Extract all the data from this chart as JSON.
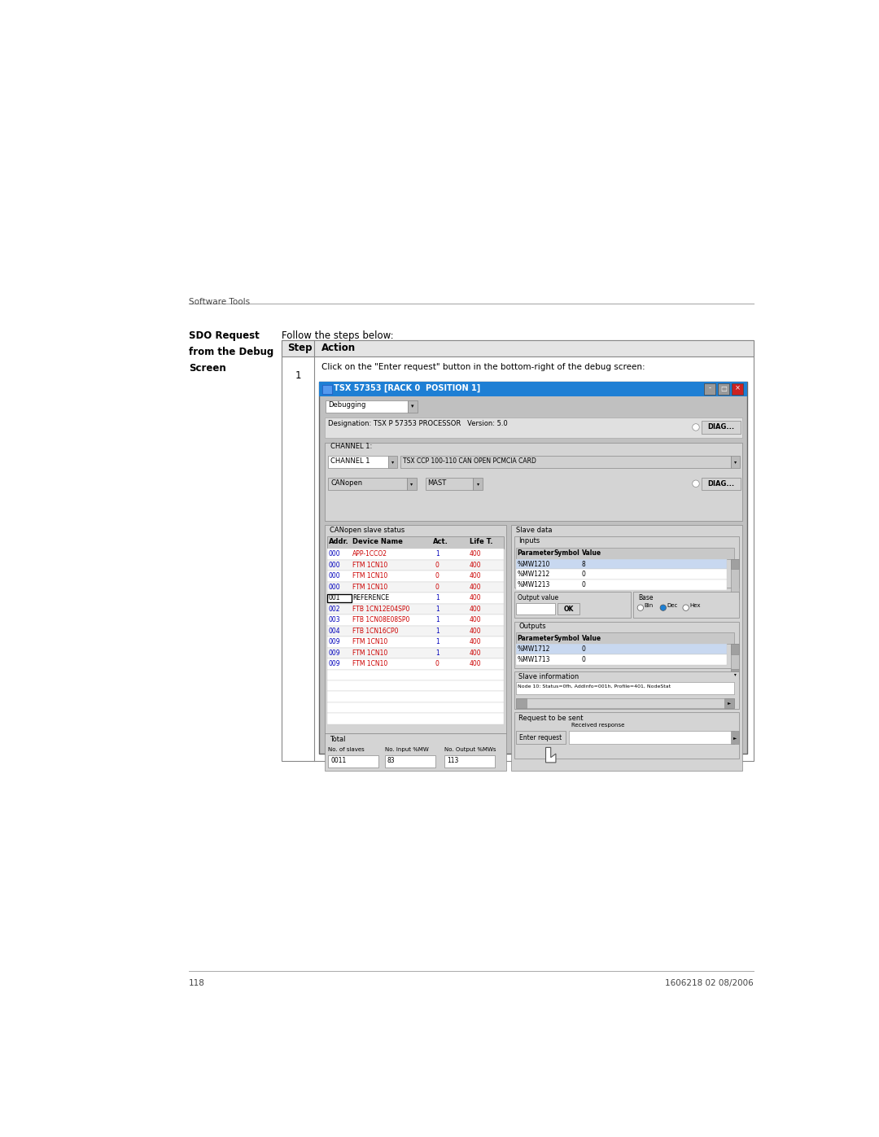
{
  "page_width": 10.8,
  "page_height": 13.97,
  "background_color": "#ffffff",
  "header_text": "Software Tools",
  "footer_page": "118",
  "footer_right": "1606218 02 08/2006",
  "intro_text": "Follow the steps below:",
  "step_action": "Click on the \"Enter request\" button in the bottom-right of the debug screen:",
  "window_title": "TSX 57353 [RACK 0  POSITION 1]",
  "window_title_bg": "#1e7fd4",
  "window_bg": "#c0c0c0",
  "dropdown_debug": "Debugging",
  "designation_text": "Designation: TSX P 57353 PROCESSOR   Version: 5.0",
  "channel_label": "CHANNEL 1:",
  "channel_dropdown": "CHANNEL 1",
  "channel_desc": "TSX CCP 100-110 CAN OPEN PCMCIA CARD",
  "canopen_text": "CANopen",
  "mast_text": "MAST",
  "slave_section_label": "CANopen slave status",
  "slave_data_label": "Slave data",
  "inputs_label": "Inputs",
  "outputs_label": "Outputs",
  "slave_info_label": "Slave information",
  "request_label": "Request to be sent",
  "table_col_headers": [
    "Addr.",
    "Device Name",
    "Act.",
    "Life T."
  ],
  "slave_rows": [
    {
      "addr": "000",
      "name": "APP-1CCO2",
      "act": "1",
      "life": "400",
      "addr_color": "#0000bb",
      "name_color": "#cc0000"
    },
    {
      "addr": "000",
      "name": "FTM 1CN10",
      "act": "0",
      "life": "400",
      "addr_color": "#0000bb",
      "name_color": "#cc0000"
    },
    {
      "addr": "000",
      "name": "FTM 1CN10",
      "act": "0",
      "life": "400",
      "addr_color": "#0000bb",
      "name_color": "#cc0000"
    },
    {
      "addr": "000",
      "name": "FTM 1CN10",
      "act": "0",
      "life": "400",
      "addr_color": "#0000bb",
      "name_color": "#cc0000"
    },
    {
      "addr": "001",
      "name": "REFERENCE",
      "act": "1",
      "life": "400",
      "addr_color": "#000000",
      "name_color": "#000000",
      "boxed": true
    },
    {
      "addr": "002",
      "name": "FTB 1CN12E04SP0",
      "act": "1",
      "life": "400",
      "addr_color": "#0000bb",
      "name_color": "#cc0000"
    },
    {
      "addr": "003",
      "name": "FTB 1CN08E08SP0",
      "act": "1",
      "life": "400",
      "addr_color": "#0000bb",
      "name_color": "#cc0000"
    },
    {
      "addr": "004",
      "name": "FTB 1CN16CP0",
      "act": "1",
      "life": "400",
      "addr_color": "#0000bb",
      "name_color": "#cc0000"
    },
    {
      "addr": "009",
      "name": "FTM 1CN10",
      "act": "1",
      "life": "400",
      "addr_color": "#0000bb",
      "name_color": "#cc0000"
    },
    {
      "addr": "009",
      "name": "FTM 1CN10",
      "act": "1",
      "life": "400",
      "addr_color": "#0000bb",
      "name_color": "#cc0000"
    },
    {
      "addr": "009",
      "name": "FTM 1CN10",
      "act": "0",
      "life": "400",
      "addr_color": "#0000bb",
      "name_color": "#cc0000"
    }
  ],
  "inputs_rows": [
    {
      "param": "%MW1210",
      "symbol": "",
      "value": "8",
      "param_bg": "#c8d8f0"
    },
    {
      "param": "%MW1212",
      "symbol": "",
      "value": "0",
      "param_bg": "#ffffff"
    },
    {
      "param": "%MW1213",
      "symbol": "",
      "value": "0",
      "param_bg": "#ffffff"
    }
  ],
  "outputs_rows": [
    {
      "param": "%MW1712",
      "symbol": "",
      "value": "0",
      "param_bg": "#c8d8f0"
    },
    {
      "param": "%MW1713",
      "symbol": "",
      "value": "0",
      "param_bg": "#ffffff"
    }
  ],
  "total_slaves": "0011",
  "total_input_mw": "83",
  "total_output_mw": "113",
  "slave_info_text": "Node 10: Status=0fh, AddInfo=001h, Profile=401, NodeStat",
  "enter_request_btn": "Enter request",
  "received_response_label": "Received response",
  "diag_btn": "DIAG...",
  "ok_btn": "OK",
  "base_label": "Base",
  "output_value_label": "Output value"
}
